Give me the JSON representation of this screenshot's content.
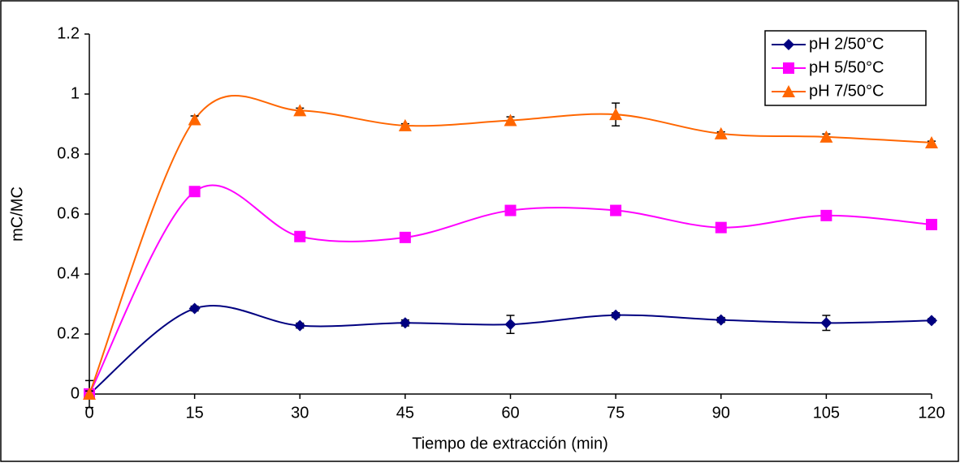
{
  "chart_data": {
    "type": "line",
    "x_label": "Tiempo de extracción (min)",
    "y_label": "mC/MC",
    "x": [
      0,
      15,
      30,
      45,
      60,
      75,
      90,
      105,
      120
    ],
    "xlim": [
      0,
      120
    ],
    "xticks": [
      0,
      15,
      30,
      45,
      60,
      75,
      90,
      105,
      120
    ],
    "ylim": [
      0,
      1.2
    ],
    "yticks": [
      0,
      0.2,
      0.4,
      0.6,
      0.8,
      1,
      1.2
    ],
    "legend": "top-right",
    "series": [
      {
        "name": "pH 2/50°C",
        "color": "#000080",
        "marker": "diamond",
        "values": [
          0,
          0.285,
          0.228,
          0.237,
          0.232,
          0.263,
          0.247,
          0.237,
          0.245
        ],
        "errors": [
          0.045,
          0.008,
          0.008,
          0.01,
          0.03,
          0.008,
          0.008,
          0.025,
          0.006
        ]
      },
      {
        "name": "pH 5/50°C",
        "color": "#ff00ff",
        "marker": "square",
        "values": [
          0,
          0.675,
          0.525,
          0.522,
          0.612,
          0.612,
          0.555,
          0.595,
          0.565
        ],
        "errors": [
          0.01,
          0.01,
          0.008,
          0.008,
          0.01,
          0.01,
          0.008,
          0.008,
          0.006
        ]
      },
      {
        "name": "pH 7/50°C",
        "color": "#ff6600",
        "marker": "triangle",
        "values": [
          0,
          0.915,
          0.945,
          0.895,
          0.912,
          0.932,
          0.868,
          0.857,
          0.838
        ],
        "errors": [
          0.01,
          0.012,
          0.008,
          0.006,
          0.012,
          0.038,
          0.006,
          0.01,
          0.005
        ]
      }
    ]
  }
}
